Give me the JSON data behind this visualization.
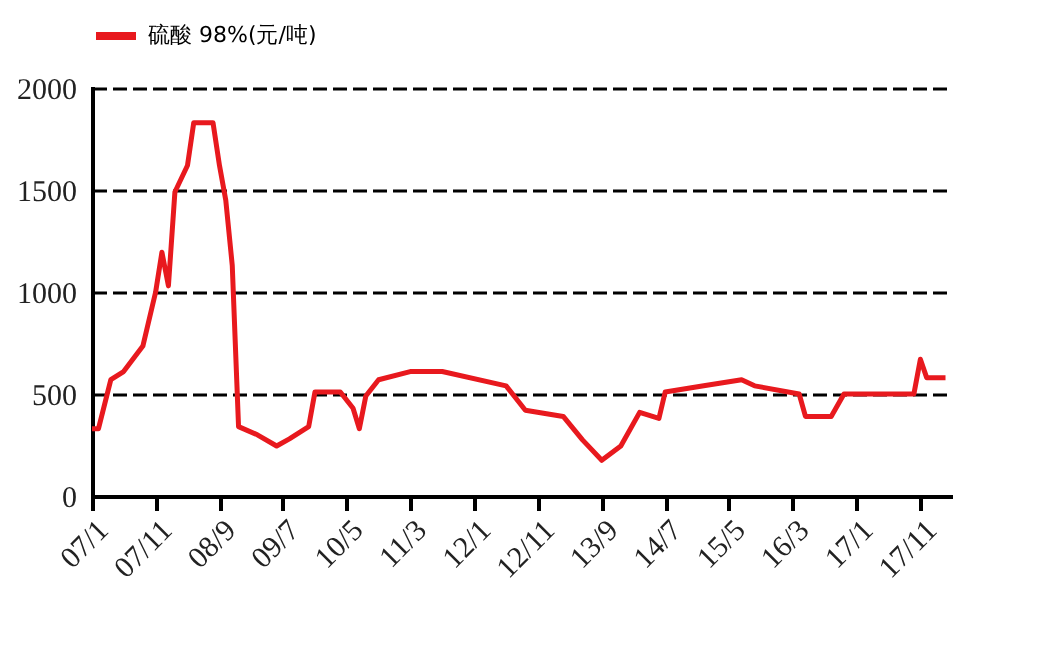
{
  "chart_data": {
    "type": "line",
    "x": [
      "2007-01",
      "2007-02",
      "2007-04",
      "2007-06",
      "2007-09",
      "2007-11",
      "2007-12",
      "2008-01",
      "2008-02",
      "2008-04",
      "2008-05",
      "2008-08",
      "2008-09",
      "2008-10",
      "2008-11",
      "2008-12",
      "2009-03",
      "2009-06",
      "2009-08",
      "2009-11",
      "2009-12",
      "2010-04",
      "2010-06",
      "2010-07",
      "2010-08",
      "2010-10",
      "2011-03",
      "2011-08",
      "2012-06",
      "2012-09",
      "2013-03",
      "2013-06",
      "2013-09",
      "2013-12",
      "2014-03",
      "2014-06",
      "2014-07",
      "2015-01",
      "2015-07",
      "2015-09",
      "2016-04",
      "2016-05",
      "2016-09",
      "2016-11",
      "2017-10",
      "2017-11",
      "2017-12",
      "2018-03"
    ],
    "series": [
      {
        "name": "硫酸 98%(元/吨)",
        "color": "#e8191e",
        "values": [
          330,
          330,
          570,
          610,
          735,
          1000,
          1195,
          1030,
          1490,
          1620,
          1830,
          1830,
          1620,
          1450,
          1130,
          340,
          300,
          245,
          280,
          340,
          510,
          510,
          430,
          330,
          490,
          570,
          610,
          610,
          540,
          420,
          390,
          275,
          175,
          245,
          410,
          380,
          510,
          540,
          570,
          540,
          500,
          390,
          390,
          500,
          500,
          670,
          580,
          580
        ]
      }
    ],
    "xlim": [
      "2007-01",
      "2018-04"
    ],
    "xticks": [
      {
        "value": "2007-01",
        "label": "07/1"
      },
      {
        "value": "2007-11",
        "label": "07/11"
      },
      {
        "value": "2008-09",
        "label": "08/9"
      },
      {
        "value": "2009-07",
        "label": "09/7"
      },
      {
        "value": "2010-05",
        "label": "10/5"
      },
      {
        "value": "2011-03",
        "label": "11/3"
      },
      {
        "value": "2012-01",
        "label": "12/1"
      },
      {
        "value": "2012-11",
        "label": "12/11"
      },
      {
        "value": "2013-09",
        "label": "13/9"
      },
      {
        "value": "2014-07",
        "label": "14/7"
      },
      {
        "value": "2015-05",
        "label": "15/5"
      },
      {
        "value": "2016-03",
        "label": "16/3"
      },
      {
        "value": "2017-01",
        "label": "17/1"
      },
      {
        "value": "2017-11",
        "label": "17/11"
      }
    ],
    "ylim": [
      0,
      2000
    ],
    "yticks": [
      0,
      500,
      1000,
      1500,
      2000
    ],
    "grid": "y",
    "legend": "top",
    "line_style": "solid",
    "marker": "none"
  }
}
